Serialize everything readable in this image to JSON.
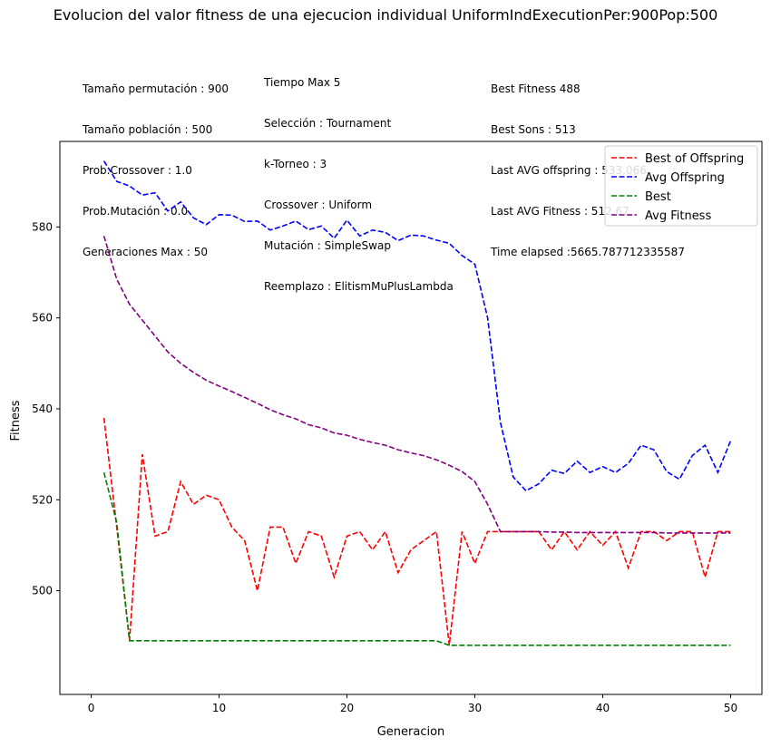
{
  "chart_data": {
    "type": "line",
    "title": "Evolucion del valor fitness de una ejecucion individual UniformIndExecutionPer:900Pop:500",
    "xlabel": "Generacion",
    "ylabel": "Fitness",
    "xlim": [
      -2.45,
      52.45
    ],
    "ylim": [
      477.2,
      598.8
    ],
    "xticks": [
      0,
      10,
      20,
      30,
      40,
      50
    ],
    "yticks": [
      500,
      520,
      540,
      560,
      580
    ],
    "legend_position": "top-right",
    "x": [
      1,
      2,
      3,
      4,
      5,
      6,
      7,
      8,
      9,
      10,
      11,
      12,
      13,
      14,
      15,
      16,
      17,
      18,
      19,
      20,
      21,
      22,
      23,
      24,
      25,
      26,
      27,
      28,
      29,
      30,
      31,
      32,
      33,
      34,
      35,
      36,
      37,
      38,
      39,
      40,
      41,
      42,
      43,
      44,
      45,
      46,
      47,
      48,
      49,
      50
    ],
    "series": [
      {
        "name": "Best of Offspring",
        "color": "#ff0000",
        "values": [
          538,
          514,
          489,
          530,
          512,
          513,
          524,
          519,
          521,
          520,
          514,
          511,
          500,
          514,
          514,
          506,
          513,
          512,
          503,
          512,
          513,
          509,
          513,
          504,
          509,
          511,
          513,
          488,
          513,
          506,
          513,
          513,
          513,
          513,
          513,
          509,
          513,
          509,
          513,
          510,
          513,
          505,
          513,
          513,
          511,
          513,
          513,
          503,
          513,
          513
        ]
      },
      {
        "name": "Avg Offspring",
        "color": "#0000ff",
        "values": [
          594.5,
          590,
          589,
          587,
          587.5,
          583.5,
          585.5,
          582,
          580.5,
          582.7,
          582.6,
          581.2,
          581.3,
          579.3,
          580.2,
          581.3,
          579.4,
          580.2,
          577.5,
          581.5,
          578,
          579.3,
          578.8,
          577,
          578.2,
          578,
          577.1,
          576.4,
          573.7,
          571.8,
          560,
          537,
          525,
          522,
          523.5,
          526.5,
          525.8,
          528.5,
          526,
          527.3,
          526,
          528,
          532,
          531,
          526.2,
          524.5,
          529.7,
          532,
          526,
          533
        ]
      },
      {
        "name": "Best",
        "color": "#008000",
        "values": [
          526,
          515,
          489,
          489,
          489,
          489,
          489,
          489,
          489,
          489,
          489,
          489,
          489,
          489,
          489,
          489,
          489,
          489,
          489,
          489,
          489,
          489,
          489,
          489,
          489,
          489,
          489,
          488,
          488,
          488,
          488,
          488,
          488,
          488,
          488,
          488,
          488,
          488,
          488,
          488,
          488,
          488,
          488,
          488,
          488,
          488,
          488,
          488,
          488,
          488
        ]
      },
      {
        "name": "Avg Fitness",
        "color": "#800080",
        "values": [
          578,
          568.5,
          563,
          559.5,
          556,
          552.5,
          550,
          548,
          546.3,
          545,
          543.8,
          542.5,
          541.2,
          539.8,
          538.7,
          537.8,
          536.5,
          535.8,
          534.7,
          534.2,
          533.3,
          532.6,
          532,
          531,
          530.3,
          529.7,
          528.8,
          527.6,
          526.2,
          524,
          519,
          513,
          513,
          513,
          513,
          512.9,
          512.9,
          512.8,
          512.8,
          512.8,
          512.8,
          512.8,
          512.8,
          512.8,
          512.7,
          512.7,
          512.7,
          512.7,
          512.7,
          512.7
        ]
      }
    ]
  },
  "info": {
    "col1": [
      "Tamaño permutación : 900",
      "Tamaño población : 500",
      "Prob.Crossover : 1.0",
      "Prob.Mutación : 0.0",
      "Generaciones Max : 50"
    ],
    "col2": [
      "Tiempo Max 5",
      "Selección : Tournament",
      "k-Torneo : 3",
      "Crossover : Uniform",
      "Mutación : SimpleSwap",
      "Reemplazo : ElitismMuPlusLambda"
    ],
    "col3": [
      "Best Fitness 488",
      "Best Sons : 513",
      "Last AVG offspring : 533.066",
      "Last AVG Fitness : 512.67",
      "Time elapsed :5665.787712335587"
    ]
  }
}
